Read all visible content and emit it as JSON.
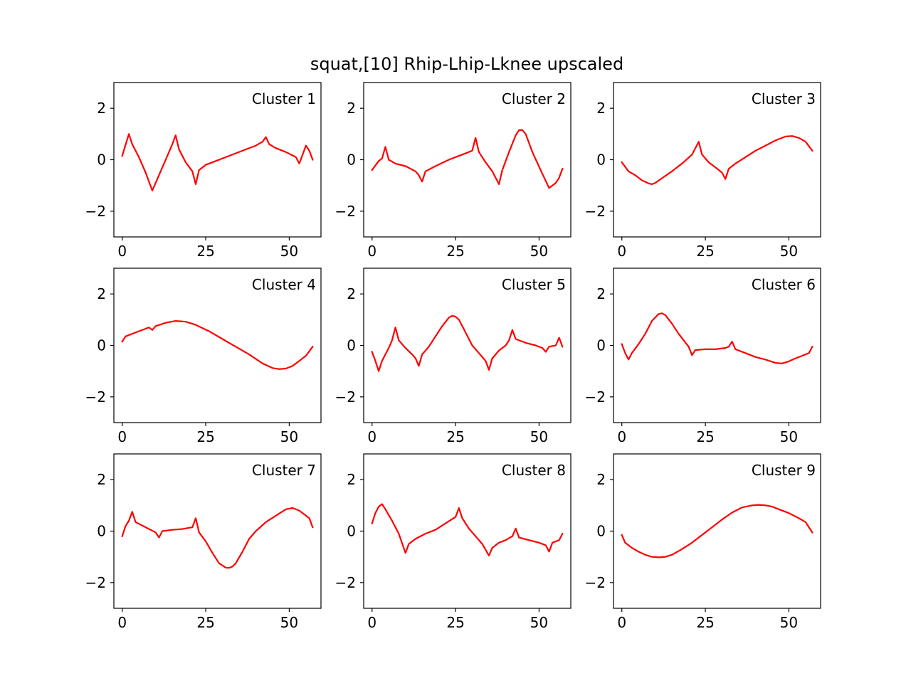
{
  "figure": {
    "title": "squat,[10] Rhip-Lhip-Lknee upscaled"
  },
  "style": {
    "line_color": "#ff0000",
    "axes_color": "#000000",
    "background": "#ffffff"
  },
  "chart_data": [
    {
      "type": "line",
      "title": "Cluster 1",
      "xlim": [
        -2.5,
        59.5
      ],
      "ylim": [
        -3,
        3
      ],
      "xticks": [
        0,
        25,
        50
      ],
      "yticks": [
        -2,
        0,
        2
      ],
      "ytick_labels": [
        "−2",
        "0",
        "2"
      ],
      "grid": false,
      "series": [
        {
          "x": [
            0,
            2,
            3,
            5,
            7,
            9,
            11,
            13,
            15,
            16,
            17,
            19,
            21,
            22,
            23,
            25,
            28,
            31,
            34,
            37,
            40,
            42,
            43,
            44,
            46,
            49,
            52,
            53,
            55,
            56,
            57
          ],
          "y": [
            0.15,
            1.0,
            0.6,
            0.1,
            -0.5,
            -1.2,
            -0.6,
            0.0,
            0.6,
            0.95,
            0.4,
            -0.1,
            -0.45,
            -0.95,
            -0.4,
            -0.2,
            -0.05,
            0.1,
            0.25,
            0.4,
            0.55,
            0.7,
            0.88,
            0.6,
            0.45,
            0.3,
            0.1,
            -0.15,
            0.55,
            0.35,
            0.0
          ]
        }
      ]
    },
    {
      "type": "line",
      "title": "Cluster 2",
      "xlim": [
        -2.5,
        59.5
      ],
      "ylim": [
        -3,
        3
      ],
      "xticks": [
        0,
        25,
        50
      ],
      "yticks": [
        -2,
        0,
        2
      ],
      "ytick_labels": [
        "−2",
        "0",
        "2"
      ],
      "grid": false,
      "series": [
        {
          "x": [
            0,
            2,
            3,
            4,
            5,
            7,
            10,
            13,
            14,
            15,
            16,
            19,
            23,
            27,
            30,
            31,
            32,
            34,
            36,
            38,
            39,
            41,
            43,
            44,
            45,
            46,
            48,
            51,
            53,
            55,
            56,
            57
          ],
          "y": [
            -0.4,
            -0.05,
            0.05,
            0.5,
            0.0,
            -0.15,
            -0.25,
            -0.45,
            -0.6,
            -0.85,
            -0.45,
            -0.25,
            0.0,
            0.2,
            0.35,
            0.85,
            0.3,
            -0.1,
            -0.45,
            -0.95,
            -0.4,
            0.3,
            0.95,
            1.15,
            1.15,
            1.0,
            0.3,
            -0.55,
            -1.1,
            -0.9,
            -0.7,
            -0.35
          ]
        }
      ]
    },
    {
      "type": "line",
      "title": "Cluster 3",
      "xlim": [
        -2.5,
        59.5
      ],
      "ylim": [
        -3,
        3
      ],
      "xticks": [
        0,
        25,
        50
      ],
      "yticks": [
        -2,
        0,
        2
      ],
      "ytick_labels": [
        "−2",
        "0",
        "2"
      ],
      "grid": false,
      "series": [
        {
          "x": [
            0,
            2,
            4,
            6,
            8,
            9,
            10,
            12,
            15,
            18,
            21,
            23,
            24,
            26,
            28,
            30,
            31,
            32,
            34,
            37,
            40,
            43,
            46,
            49,
            51,
            53,
            55,
            57
          ],
          "y": [
            -0.1,
            -0.45,
            -0.6,
            -0.8,
            -0.92,
            -0.95,
            -0.9,
            -0.72,
            -0.45,
            -0.15,
            0.2,
            0.7,
            0.2,
            -0.1,
            -0.3,
            -0.5,
            -0.75,
            -0.35,
            -0.15,
            0.1,
            0.35,
            0.55,
            0.75,
            0.9,
            0.92,
            0.85,
            0.7,
            0.35
          ]
        }
      ]
    },
    {
      "type": "line",
      "title": "Cluster 4",
      "xlim": [
        -2.5,
        59.5
      ],
      "ylim": [
        -3,
        3
      ],
      "xticks": [
        0,
        25,
        50
      ],
      "yticks": [
        -2,
        0,
        2
      ],
      "ytick_labels": [
        "−2",
        "0",
        "2"
      ],
      "grid": false,
      "series": [
        {
          "x": [
            0,
            1,
            4,
            7,
            8,
            9,
            10,
            13,
            16,
            19,
            22,
            26,
            30,
            34,
            38,
            42,
            45,
            47,
            49,
            51,
            53,
            55,
            57
          ],
          "y": [
            0.15,
            0.35,
            0.5,
            0.65,
            0.7,
            0.6,
            0.75,
            0.88,
            0.95,
            0.92,
            0.8,
            0.55,
            0.25,
            -0.05,
            -0.35,
            -0.7,
            -0.88,
            -0.92,
            -0.9,
            -0.8,
            -0.6,
            -0.4,
            -0.05
          ]
        }
      ]
    },
    {
      "type": "line",
      "title": "Cluster 5",
      "xlim": [
        -2.5,
        59.5
      ],
      "ylim": [
        -3,
        3
      ],
      "xticks": [
        0,
        25,
        50
      ],
      "yticks": [
        -2,
        0,
        2
      ],
      "ytick_labels": [
        "−2",
        "0",
        "2"
      ],
      "grid": false,
      "series": [
        {
          "x": [
            0,
            1,
            2,
            3,
            5,
            6,
            7,
            8,
            10,
            12,
            13,
            14,
            15,
            17,
            19,
            21,
            23,
            24,
            25,
            26,
            28,
            30,
            32,
            34,
            35,
            36,
            38,
            40,
            41,
            42,
            43,
            46,
            49,
            51,
            52,
            53,
            55,
            56,
            57
          ],
          "y": [
            -0.25,
            -0.6,
            -1.0,
            -0.6,
            -0.1,
            0.2,
            0.7,
            0.2,
            -0.1,
            -0.35,
            -0.5,
            -0.8,
            -0.35,
            -0.05,
            0.35,
            0.75,
            1.08,
            1.15,
            1.12,
            1.0,
            0.5,
            0.0,
            -0.3,
            -0.6,
            -0.95,
            -0.5,
            -0.2,
            0.0,
            0.2,
            0.6,
            0.25,
            0.1,
            0.0,
            -0.1,
            -0.25,
            -0.05,
            0.0,
            0.3,
            -0.05
          ]
        }
      ]
    },
    {
      "type": "line",
      "title": "Cluster 6",
      "xlim": [
        -2.5,
        59.5
      ],
      "ylim": [
        -3,
        3
      ],
      "xticks": [
        0,
        25,
        50
      ],
      "yticks": [
        -2,
        0,
        2
      ],
      "ytick_labels": [
        "−2",
        "0",
        "2"
      ],
      "grid": false,
      "series": [
        {
          "x": [
            0,
            1,
            2,
            3,
            5,
            7,
            9,
            11,
            12,
            13,
            15,
            17,
            20,
            21,
            22,
            25,
            28,
            31,
            32,
            33,
            34,
            37,
            40,
            43,
            46,
            48,
            50,
            52,
            54,
            56,
            57
          ],
          "y": [
            0.05,
            -0.3,
            -0.55,
            -0.3,
            0.05,
            0.45,
            0.95,
            1.22,
            1.25,
            1.18,
            0.85,
            0.45,
            -0.05,
            -0.38,
            -0.18,
            -0.15,
            -0.15,
            -0.1,
            -0.05,
            0.15,
            -0.15,
            -0.3,
            -0.45,
            -0.55,
            -0.68,
            -0.7,
            -0.62,
            -0.5,
            -0.4,
            -0.3,
            -0.05
          ]
        }
      ]
    },
    {
      "type": "line",
      "title": "Cluster 7",
      "xlim": [
        -2.5,
        59.5
      ],
      "ylim": [
        -3,
        3
      ],
      "xticks": [
        0,
        25,
        50
      ],
      "yticks": [
        -2,
        0,
        2
      ],
      "ytick_labels": [
        "−2",
        "0",
        "2"
      ],
      "grid": false,
      "series": [
        {
          "x": [
            0,
            1,
            2,
            3,
            4,
            7,
            10,
            11,
            12,
            15,
            18,
            21,
            22,
            23,
            25,
            27,
            29,
            31,
            32,
            33,
            34,
            36,
            38,
            40,
            43,
            46,
            49,
            51,
            53,
            56,
            57
          ],
          "y": [
            -0.2,
            0.2,
            0.4,
            0.75,
            0.35,
            0.15,
            -0.05,
            -0.25,
            0.0,
            0.05,
            0.08,
            0.15,
            0.5,
            -0.05,
            -0.4,
            -0.85,
            -1.25,
            -1.42,
            -1.43,
            -1.38,
            -1.25,
            -0.8,
            -0.3,
            0.0,
            0.35,
            0.6,
            0.85,
            0.9,
            0.8,
            0.5,
            0.15
          ]
        }
      ]
    },
    {
      "type": "line",
      "title": "Cluster 8",
      "xlim": [
        -2.5,
        59.5
      ],
      "ylim": [
        -3,
        3
      ],
      "xticks": [
        0,
        25,
        50
      ],
      "yticks": [
        -2,
        0,
        2
      ],
      "ytick_labels": [
        "−2",
        "0",
        "2"
      ],
      "grid": false,
      "series": [
        {
          "x": [
            0,
            1,
            2,
            3,
            4,
            6,
            8,
            10,
            11,
            13,
            16,
            19,
            22,
            25,
            26,
            27,
            29,
            31,
            33,
            35,
            36,
            38,
            40,
            42,
            43,
            44,
            47,
            50,
            52,
            53,
            54,
            56,
            57
          ],
          "y": [
            0.3,
            0.7,
            0.95,
            1.05,
            0.85,
            0.4,
            -0.1,
            -0.85,
            -0.5,
            -0.3,
            -0.1,
            0.05,
            0.3,
            0.55,
            0.9,
            0.5,
            0.1,
            -0.2,
            -0.5,
            -0.95,
            -0.65,
            -0.45,
            -0.35,
            -0.2,
            0.1,
            -0.25,
            -0.35,
            -0.45,
            -0.55,
            -0.8,
            -0.45,
            -0.35,
            -0.1
          ]
        }
      ]
    },
    {
      "type": "line",
      "title": "Cluster 9",
      "xlim": [
        -2.5,
        59.5
      ],
      "ylim": [
        -3,
        3
      ],
      "xticks": [
        0,
        25,
        50
      ],
      "yticks": [
        -2,
        0,
        2
      ],
      "ytick_labels": [
        "−2",
        "0",
        "2"
      ],
      "grid": false,
      "series": [
        {
          "x": [
            0,
            1,
            3,
            5,
            7,
            9,
            11,
            13,
            15,
            18,
            21,
            24,
            27,
            30,
            33,
            36,
            39,
            41,
            43,
            45,
            47,
            50,
            53,
            55,
            56,
            57
          ],
          "y": [
            -0.15,
            -0.45,
            -0.65,
            -0.8,
            -0.92,
            -1.0,
            -1.02,
            -1.0,
            -0.92,
            -0.7,
            -0.45,
            -0.15,
            0.15,
            0.45,
            0.72,
            0.92,
            1.0,
            1.02,
            1.0,
            0.95,
            0.85,
            0.7,
            0.5,
            0.35,
            0.15,
            -0.05
          ]
        }
      ]
    }
  ]
}
